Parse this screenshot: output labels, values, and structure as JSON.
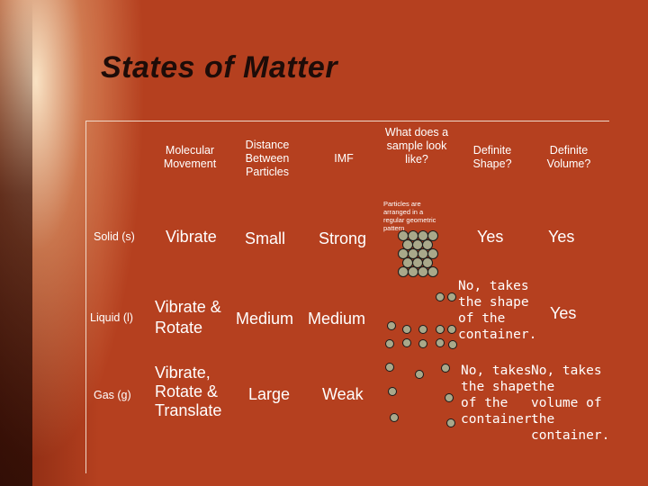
{
  "title": "States of Matter",
  "headers": {
    "movement": "Molecular Movement",
    "distance": "Distance Between Particles",
    "imf": "IMF",
    "look": "What does a sample look like?",
    "shape": "Definite Shape?",
    "volume": "Definite Volume?"
  },
  "rows": [
    {
      "label": "Solid (s)",
      "movement": "Vibrate",
      "distance": "Small",
      "imf": "Strong",
      "note": "Particles are arranged in a regular geometric pattern",
      "shape": "Yes",
      "volume": "Yes"
    },
    {
      "label": "Liquid (l)",
      "movement": "Vibrate & Rotate",
      "distance": "Medium",
      "imf": "Medium",
      "shape": "No, takes the shape of the container.",
      "volume": "Yes"
    },
    {
      "label": "Gas (g)",
      "movement": "Vibrate, Rotate & Translate",
      "distance": "Large",
      "imf": "Weak",
      "shape": "No, takes the shape of the container.",
      "volume": "No, takes the volume of the container."
    }
  ],
  "colors": {
    "background": "#b5401f",
    "title": "#1e0c08",
    "text": "#ffffff",
    "particle": "#a9a88a"
  }
}
